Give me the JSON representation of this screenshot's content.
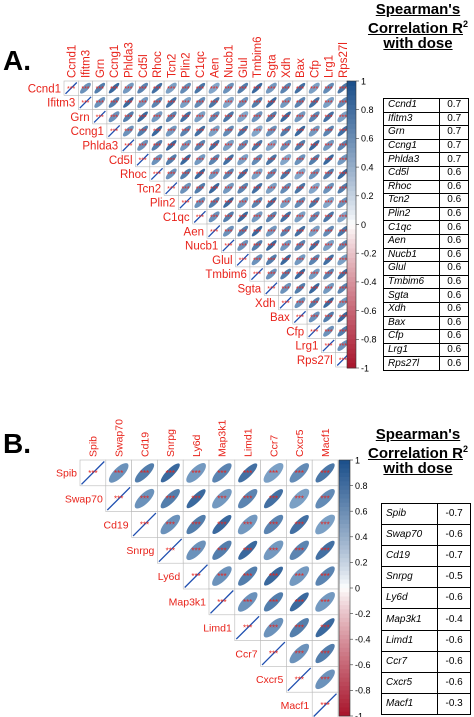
{
  "chart_data": [
    {
      "type": "heatmap",
      "panel_label": "A.",
      "genes": [
        "Ccnd1",
        "Ifitm3",
        "Grn",
        "Ccng1",
        "Phlda3",
        "Cd5l",
        "Rhoc",
        "Tcn2",
        "Plin2",
        "C1qc",
        "Aen",
        "Nucb1",
        "Glul",
        "Tmbim6",
        "Sgta",
        "Xdh",
        "Bax",
        "Cfp",
        "Lrg1",
        "Rps27l"
      ],
      "correlation_display": "upper-triangle ellipses, significance stars",
      "off_diagonal_significance": "***",
      "colorbar": {
        "ticks": [
          "1",
          "0.8",
          "0.6",
          "0.4",
          "0.2",
          "0",
          "-0.2",
          "-0.4",
          "-0.6",
          "-0.8",
          "-1"
        ],
        "range": [
          -1,
          1
        ]
      },
      "table": {
        "title_line1": "Spearman's",
        "title_line2": "Correlation R",
        "title_sup": "2",
        "title_line3": "with dose",
        "rows": [
          {
            "gene": "Ccnd1",
            "value": "0.7"
          },
          {
            "gene": "Ifitm3",
            "value": "0.7"
          },
          {
            "gene": "Grn",
            "value": "0.7"
          },
          {
            "gene": "Ccng1",
            "value": "0.7"
          },
          {
            "gene": "Phlda3",
            "value": "0.7"
          },
          {
            "gene": "Cd5l",
            "value": "0.6"
          },
          {
            "gene": "Rhoc",
            "value": "0.6"
          },
          {
            "gene": "Tcn2",
            "value": "0.6"
          },
          {
            "gene": "Plin2",
            "value": "0.6"
          },
          {
            "gene": "C1qc",
            "value": "0.6"
          },
          {
            "gene": "Aen",
            "value": "0.6"
          },
          {
            "gene": "Nucb1",
            "value": "0.6"
          },
          {
            "gene": "Glul",
            "value": "0.6"
          },
          {
            "gene": "Tmbim6",
            "value": "0.6"
          },
          {
            "gene": "Sgta",
            "value": "0.6"
          },
          {
            "gene": "Xdh",
            "value": "0.6"
          },
          {
            "gene": "Bax",
            "value": "0.6"
          },
          {
            "gene": "Cfp",
            "value": "0.6"
          },
          {
            "gene": "Lrg1",
            "value": "0.6"
          },
          {
            "gene": "Rps27l",
            "value": "0.6"
          }
        ]
      }
    },
    {
      "type": "heatmap",
      "panel_label": "B.",
      "genes": [
        "Spib",
        "Swap70",
        "Cd19",
        "Snrpg",
        "Ly6d",
        "Map3k1",
        "Limd1",
        "Ccr7",
        "Cxcr5",
        "Macf1"
      ],
      "correlation_display": "upper-triangle ellipses, significance stars",
      "off_diagonal_significance": "***",
      "colorbar": {
        "ticks": [
          "1",
          "0.8",
          "0.6",
          "0.4",
          "0.2",
          "0",
          "-0.2",
          "-0.4",
          "-0.6",
          "-0.8",
          "-1"
        ],
        "range": [
          -1,
          1
        ]
      },
      "table": {
        "title_line1": "Spearman's",
        "title_line2": "Correlation R",
        "title_sup": "2",
        "title_line3": "with dose",
        "rows": [
          {
            "gene": "Spib",
            "value": "-0.7"
          },
          {
            "gene": "Swap70",
            "value": "-0.6"
          },
          {
            "gene": "Cd19",
            "value": "-0.7"
          },
          {
            "gene": "Snrpg",
            "value": "-0.5"
          },
          {
            "gene": "Ly6d",
            "value": "-0.6"
          },
          {
            "gene": "Map3k1",
            "value": "-0.4"
          },
          {
            "gene": "Limd1",
            "value": "-0.6"
          },
          {
            "gene": "Ccr7",
            "value": "-0.6"
          },
          {
            "gene": "Cxcr5",
            "value": "-0.6"
          },
          {
            "gene": "Macf1",
            "value": "-0.3"
          }
        ]
      }
    }
  ],
  "colors": {
    "label_red": "#e8231b",
    "positive": "#1a4e8a",
    "negative": "#a8142b",
    "diagonal_line": "#1f4fb0"
  }
}
